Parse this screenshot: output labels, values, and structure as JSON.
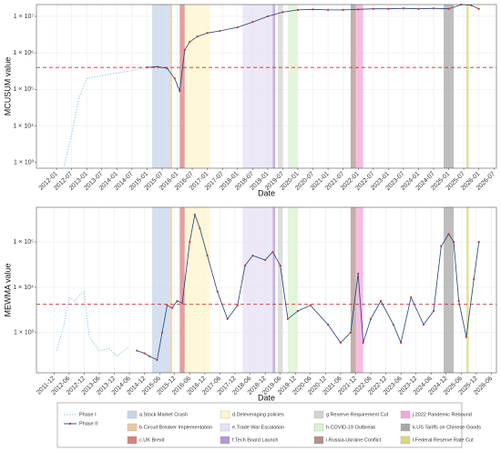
{
  "chart_data": [
    {
      "type": "line",
      "y_label": "MCUSUM value",
      "x_label": "Date",
      "log_y": true,
      "grid": true,
      "xlim": [
        "2011-05",
        "2026-08"
      ],
      "ylim": [
        700,
        21000000
      ],
      "xticks": [
        "2012-01",
        "2012-07",
        "2013-01",
        "2013-07",
        "2014-01",
        "2014-07",
        "2015-01",
        "2015-07",
        "2016-01",
        "2016-07",
        "2017-01",
        "2017-07",
        "2018-01",
        "2018-07",
        "2019-01",
        "2019-07",
        "2020-01",
        "2020-07",
        "2021-01",
        "2021-07",
        "2022-01",
        "2022-07",
        "2023-01",
        "2023-07",
        "2024-01",
        "2024-07",
        "2025-01",
        "2025-07",
        "2026-01",
        "2026-07"
      ],
      "yticks": [
        {
          "value": 1000,
          "label": "1 × 10³"
        },
        {
          "value": 10000,
          "label": "1 × 10⁴"
        },
        {
          "value": 100000,
          "label": "1 × 10⁵"
        },
        {
          "value": 1000000,
          "label": "1 × 10⁶"
        },
        {
          "value": 10000000,
          "label": "1 × 10⁷"
        }
      ],
      "threshold": 400000,
      "threshold_color": "#d62728",
      "series": [
        {
          "name": "Phase I",
          "color": "#8fc3e3",
          "x": [
            "2012-04",
            "2012-07",
            "2012-10",
            "2013-01",
            "2013-07",
            "2014-01",
            "2014-07",
            "2015-01"
          ],
          "values": [
            800,
            6000,
            60000,
            200000,
            240000,
            280000,
            330000,
            400000
          ]
        },
        {
          "name": "Phase II",
          "color": "#1f3f7a",
          "x": [
            "2015-01",
            "2015-05",
            "2015-09",
            "2015-12",
            "2016-02",
            "2016-04",
            "2016-06",
            "2016-09",
            "2017-01",
            "2017-06",
            "2018-01",
            "2018-07",
            "2019-01",
            "2019-07",
            "2020-01",
            "2020-07",
            "2021-01",
            "2021-07",
            "2022-01",
            "2022-07",
            "2023-01",
            "2023-07",
            "2024-01",
            "2024-07",
            "2025-01",
            "2025-06",
            "2025-10",
            "2026-01"
          ],
          "values": [
            400000,
            420000,
            380000,
            200000,
            90000,
            1200000,
            2000000,
            2800000,
            3500000,
            4000000,
            5000000,
            7000000,
            10000000,
            13000000,
            15000000,
            15500000,
            15000000,
            15000000,
            15500000,
            16000000,
            16000000,
            16500000,
            16000000,
            16500000,
            16000000,
            21000000,
            20000000,
            16000000
          ]
        }
      ]
    },
    {
      "type": "line",
      "y_label": "MEWMA value",
      "x_label": "Date",
      "log_y": true,
      "grid": true,
      "xlim": [
        "2011-05",
        "2026-08"
      ],
      "ylim": [
        130,
        580000
      ],
      "xticks": [
        "2011-12",
        "2012-06",
        "2012-12",
        "2013-06",
        "2013-12",
        "2014-06",
        "2014-12",
        "2015-06",
        "2015-12",
        "2016-06",
        "2016-12",
        "2017-06",
        "2017-12",
        "2018-06",
        "2018-12",
        "2019-06",
        "2019-12",
        "2020-06",
        "2020-12",
        "2021-06",
        "2021-12",
        "2022-06",
        "2022-12",
        "2023-06",
        "2023-12",
        "2024-06",
        "2024-12",
        "2025-06",
        "2025-12",
        "2026-06"
      ],
      "yticks": [
        {
          "value": 1000,
          "label": "1 × 10³"
        },
        {
          "value": 10000,
          "label": "1 × 10⁴"
        },
        {
          "value": 100000,
          "label": "1 × 10⁵"
        }
      ],
      "threshold": 4200,
      "threshold_color": "#d62728",
      "series": [
        {
          "name": "Phase I",
          "color": "#8fc3e3",
          "x": [
            "2012-01",
            "2012-04",
            "2012-06",
            "2012-08",
            "2012-10",
            "2012-12",
            "2013-02",
            "2013-06",
            "2013-10",
            "2014-01",
            "2014-06"
          ],
          "values": [
            400,
            1500,
            6000,
            5000,
            6500,
            8000,
            800,
            400,
            450,
            300,
            500
          ]
        },
        {
          "name": "Phase II",
          "color": "#1f3f7a",
          "x": [
            "2014-09",
            "2014-12",
            "2015-02",
            "2015-05",
            "2015-07",
            "2015-09",
            "2015-11",
            "2016-01",
            "2016-03",
            "2016-06",
            "2016-08",
            "2016-10",
            "2017-01",
            "2017-05",
            "2017-09",
            "2018-01",
            "2018-04",
            "2018-07",
            "2018-12",
            "2019-03",
            "2019-06",
            "2019-09",
            "2020-01",
            "2020-06",
            "2021-01",
            "2021-06",
            "2021-10",
            "2022-01",
            "2022-03",
            "2022-06",
            "2022-10",
            "2023-03",
            "2023-06",
            "2023-10",
            "2024-03",
            "2024-07",
            "2024-10",
            "2025-01",
            "2025-03",
            "2025-05",
            "2025-08",
            "2025-11",
            "2026-01"
          ],
          "values": [
            400,
            350,
            300,
            250,
            1000,
            4000,
            3500,
            5000,
            4500,
            100000,
            400000,
            200000,
            50000,
            8000,
            2000,
            4000,
            30000,
            50000,
            40000,
            60000,
            30000,
            2000,
            3000,
            4000,
            1500,
            600,
            1000,
            20000,
            600,
            2000,
            5000,
            1500,
            600,
            6000,
            1500,
            3000,
            80000,
            150000,
            100000,
            5000,
            800,
            15000,
            100000
          ]
        }
      ]
    }
  ],
  "events": [
    {
      "name": "a.Stock Market Crash",
      "color": "#c6d6ea",
      "start": "2015-03",
      "end": "2015-10"
    },
    {
      "name": "b.Circuit Breaker Implementation",
      "color": "#e8c9a0",
      "start": "2015-10",
      "end": "2015-11"
    },
    {
      "name": "c.UK Brexit",
      "color": "#d98080",
      "start": "2016-02",
      "end": "2016-04"
    },
    {
      "name": "d.Deleveraging policies",
      "color": "#fdf6cc",
      "start": "2016-04",
      "end": "2017-02"
    },
    {
      "name": "e.Trade War Escalation",
      "color": "#e6e0f4",
      "start": "2018-03",
      "end": "2019-03"
    },
    {
      "name": "f.Tech Board Launch",
      "color": "#b49ad0",
      "start": "2019-03",
      "end": "2019-04"
    },
    {
      "name": "g.Reserve Requirement Cut",
      "color": "#d3d3d3",
      "start": "2019-05",
      "end": "2019-07"
    },
    {
      "name": "h.COVID-19 Outbreak",
      "color": "#d9f3d0",
      "start": "2019-09",
      "end": "2020-01"
    },
    {
      "name": "i.Russia-Ukraine Conflict",
      "color": "#b0948a",
      "start": "2021-10",
      "end": "2021-12"
    },
    {
      "name": "j.2022 Pandemic Rebound",
      "color": "#f0a8d8",
      "start": "2021-12",
      "end": "2022-03"
    },
    {
      "name": "k.US Tariffs on Chinese Goods",
      "color": "#a8a8a8",
      "start": "2024-11",
      "end": "2025-03"
    },
    {
      "name": "l.Federal Reserve Rate Cut",
      "color": "#d8d880",
      "start": "2025-08",
      "end": "2025-09"
    }
  ],
  "point_color": "#c0392b"
}
